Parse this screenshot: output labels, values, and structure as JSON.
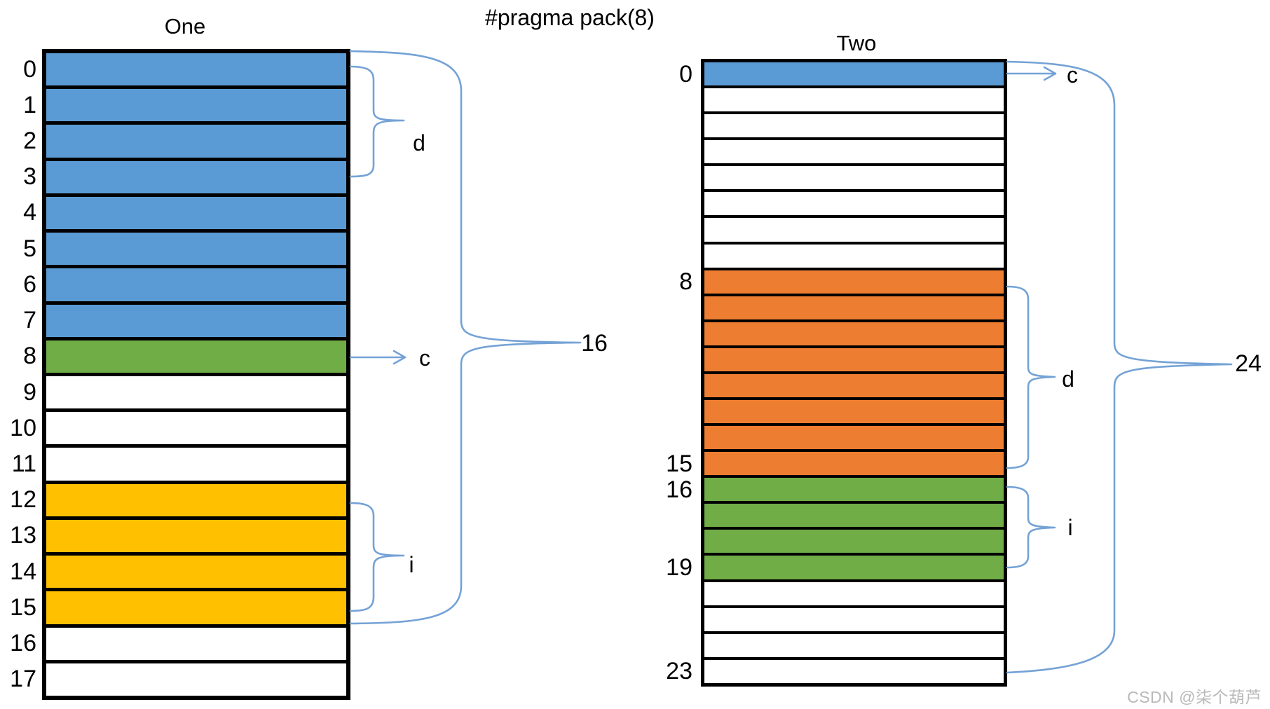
{
  "header": {
    "title": "#pragma pack(8)"
  },
  "watermark": "CSDN @柒个葫芦",
  "colors": {
    "blue": "#5B9BD5",
    "green": "#70AD47",
    "yellow": "#FFC000",
    "orange": "#ED7D31",
    "white": "#FFFFFF",
    "border": "#000000",
    "annotation": "#74A2D6",
    "watermark_gray": "#B9B9B9"
  },
  "diagrams": {
    "one": {
      "title": "One",
      "total_size_label": "16",
      "member_labels": {
        "d": "d",
        "c": "c",
        "i": "i"
      },
      "rows": [
        {
          "label": "0",
          "color": "blue"
        },
        {
          "label": "1",
          "color": "blue"
        },
        {
          "label": "2",
          "color": "blue"
        },
        {
          "label": "3",
          "color": "blue"
        },
        {
          "label": "4",
          "color": "blue"
        },
        {
          "label": "5",
          "color": "blue"
        },
        {
          "label": "6",
          "color": "blue"
        },
        {
          "label": "7",
          "color": "blue"
        },
        {
          "label": "8",
          "color": "green"
        },
        {
          "label": "9",
          "color": "white"
        },
        {
          "label": "10",
          "color": "white"
        },
        {
          "label": "11",
          "color": "white"
        },
        {
          "label": "12",
          "color": "yellow"
        },
        {
          "label": "13",
          "color": "yellow"
        },
        {
          "label": "14",
          "color": "yellow"
        },
        {
          "label": "15",
          "color": "yellow"
        },
        {
          "label": "16",
          "color": "white"
        },
        {
          "label": "17",
          "color": "white"
        }
      ]
    },
    "two": {
      "title": "Two",
      "total_size_label": "24",
      "member_labels": {
        "c": "c",
        "d": "d",
        "i": "i"
      },
      "rows": [
        {
          "label": "0",
          "color": "blue"
        },
        {
          "label": "",
          "color": "white"
        },
        {
          "label": "",
          "color": "white"
        },
        {
          "label": "",
          "color": "white"
        },
        {
          "label": "",
          "color": "white"
        },
        {
          "label": "",
          "color": "white"
        },
        {
          "label": "",
          "color": "white"
        },
        {
          "label": "",
          "color": "white"
        },
        {
          "label": "8",
          "color": "orange"
        },
        {
          "label": "",
          "color": "orange"
        },
        {
          "label": "",
          "color": "orange"
        },
        {
          "label": "",
          "color": "orange"
        },
        {
          "label": "",
          "color": "orange"
        },
        {
          "label": "",
          "color": "orange"
        },
        {
          "label": "",
          "color": "orange"
        },
        {
          "label": "15",
          "color": "orange"
        },
        {
          "label": "16",
          "color": "green"
        },
        {
          "label": "",
          "color": "green"
        },
        {
          "label": "",
          "color": "green"
        },
        {
          "label": "19",
          "color": "green"
        },
        {
          "label": "",
          "color": "white"
        },
        {
          "label": "",
          "color": "white"
        },
        {
          "label": "",
          "color": "white"
        },
        {
          "label": "23",
          "color": "white"
        }
      ]
    }
  }
}
